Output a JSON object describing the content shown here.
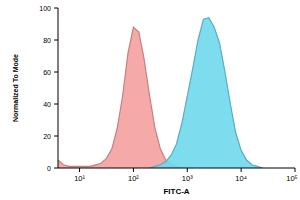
{
  "chart_data": {
    "type": "area",
    "x_label": "FITC-A",
    "y_label": "Normalized To Mode",
    "log": "x",
    "x": [
      3.98,
      5.01,
      6.31,
      7.94,
      10,
      12.6,
      15.8,
      20,
      25.1,
      31.6,
      39.8,
      50.1,
      63.1,
      79.4,
      100,
      126,
      158,
      200,
      251,
      316,
      398,
      501,
      631,
      794,
      1000,
      1259,
      1585,
      1995,
      2512,
      3162,
      3981,
      5012,
      6310,
      7943,
      10000,
      12589,
      15849,
      19953,
      25119,
      31623,
      39811,
      50119,
      63096,
      79433,
      100000
    ],
    "series": [
      {
        "color": "#f4a0a0",
        "values": [
          5,
          2,
          1,
          1,
          1,
          1,
          1,
          2,
          3,
          6,
          12,
          25,
          45,
          72,
          88,
          85,
          68,
          45,
          25,
          12,
          5,
          2,
          1,
          0,
          0,
          null,
          null,
          null,
          null,
          null,
          null,
          null,
          null,
          null,
          null,
          null,
          null,
          null,
          null,
          null,
          null,
          null,
          null,
          null,
          null
        ]
      },
      {
        "color": "#6fd8ec",
        "values": [
          null,
          null,
          null,
          null,
          null,
          null,
          null,
          null,
          null,
          null,
          null,
          null,
          null,
          null,
          null,
          null,
          null,
          0,
          1,
          2,
          4,
          8,
          15,
          28,
          45,
          62,
          80,
          93,
          94,
          88,
          78,
          60,
          40,
          22,
          11,
          5,
          2,
          1,
          0,
          null,
          null,
          null,
          null,
          null,
          null
        ]
      }
    ],
    "xlim": [
      3.98,
      100000
    ],
    "xticks": [
      {
        "value": 10,
        "label": "10¹"
      },
      {
        "value": 100,
        "label": "10²"
      },
      {
        "value": 1000,
        "label": "10³"
      },
      {
        "value": 10000,
        "label": "10⁴"
      },
      {
        "value": 100000,
        "label": "10⁵"
      }
    ],
    "ylim": [
      0,
      100
    ],
    "yticks": [
      0,
      20,
      40,
      60,
      80,
      100
    ]
  }
}
